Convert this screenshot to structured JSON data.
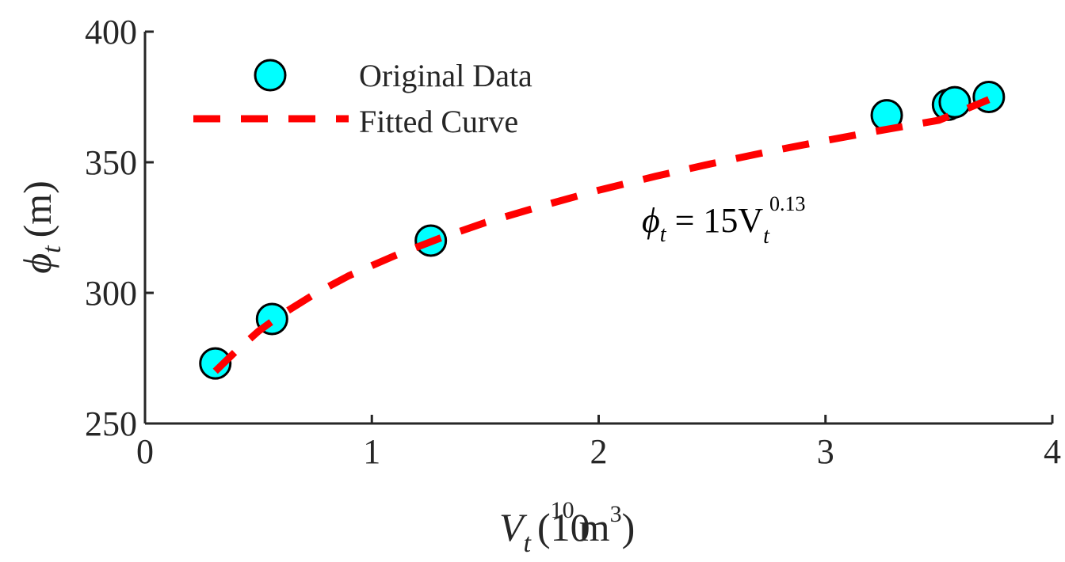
{
  "chart_data": {
    "type": "scatter",
    "title": "",
    "xlim": [
      0,
      4
    ],
    "ylim": [
      250,
      400
    ],
    "x_ticks": [
      "0",
      "1",
      "2",
      "3",
      "4"
    ],
    "y_ticks": [
      "250",
      "300",
      "350",
      "400"
    ],
    "xlabel": {
      "main": "V",
      "sub": "t",
      "unit_open": "(10",
      "unit_exp": "10",
      "unit_mid": "m",
      "unit_exp2": "3",
      "unit_close": ")"
    },
    "ylabel": {
      "main": "ϕ",
      "sub": "t",
      "unit": "(m)"
    },
    "series": [
      {
        "name": "Original Data",
        "kind": "points",
        "color": "#00FFFF",
        "x": [
          0.31,
          0.56,
          1.26,
          3.27,
          3.54,
          3.57,
          3.72
        ],
        "y": [
          273,
          290,
          320,
          368,
          372,
          373,
          375
        ]
      },
      {
        "name": "Fitted Curve",
        "kind": "dashed-line",
        "color": "#FF0000",
        "x": [
          0.31,
          0.4,
          0.5,
          0.6,
          0.75,
          0.9,
          1.1,
          1.3,
          1.5,
          1.75,
          2.0,
          2.25,
          2.5,
          2.75,
          3.0,
          3.25,
          3.5,
          3.72
        ],
        "y": [
          270,
          277.6,
          285.3,
          291.6,
          299.7,
          306.6,
          314.2,
          320.9,
          326.9,
          333.3,
          339.3,
          344.6,
          349.5,
          354.1,
          358.3,
          362.3,
          366.1,
          374
        ]
      }
    ],
    "legend": {
      "position": "top-left"
    },
    "annotation": {
      "phi": "ϕ",
      "sub": "t",
      "eq": " = 15V",
      "sub2": "t",
      "exp": "0.13"
    },
    "grid": false
  }
}
